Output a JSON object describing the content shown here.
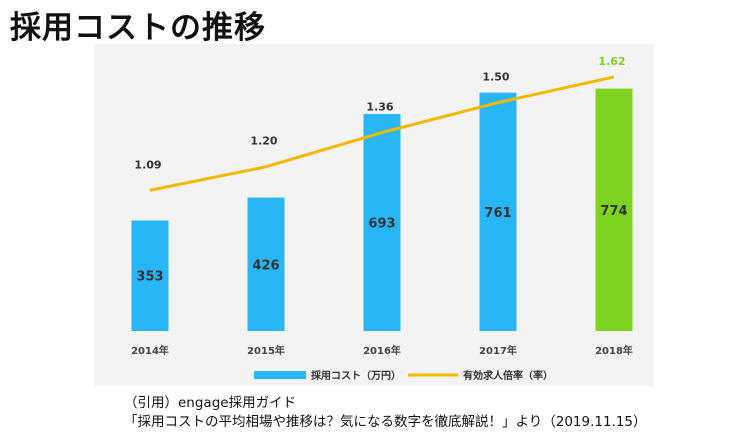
{
  "page": {
    "title": "採用コストの推移"
  },
  "source": {
    "line1": "（引用）engage採用ガイド",
    "line2": "「採用コストの平均相場や推移は？気になる数字を徹底解説！」より（2019.11.15）"
  },
  "colors": {
    "bar_default": "#29b6f6",
    "bar_highlight": "#7ed321",
    "line": "#f5b800",
    "panel_bg": "#f3f3f3",
    "highlight_label": "#7ed321",
    "label_text": "#333333"
  },
  "chart_data": {
    "type": "bar+line",
    "categories": [
      "2014年",
      "2015年",
      "2016年",
      "2017年",
      "2018年"
    ],
    "series": [
      {
        "name": "採用コスト（万円）",
        "type": "bar",
        "values": [
          353,
          426,
          693,
          761,
          774
        ],
        "labels": [
          "353",
          "426",
          "693",
          "761",
          "774"
        ],
        "highlight_index": 4
      },
      {
        "name": "有効求人倍率（率）",
        "type": "line",
        "values": [
          1.09,
          1.2,
          1.36,
          1.5,
          1.62
        ],
        "labels": [
          "1.09",
          "1.20",
          "1.36",
          "1.50",
          "1.62"
        ],
        "highlight_index": 4
      }
    ],
    "legend": {
      "position": "bottom",
      "items": [
        "採用コスト（万円）",
        "有効求人倍率（率）"
      ]
    },
    "grid": false,
    "bar_axis_range": [
      0,
      1000
    ],
    "line_axis_range": [
      0.7,
      1.8
    ]
  }
}
